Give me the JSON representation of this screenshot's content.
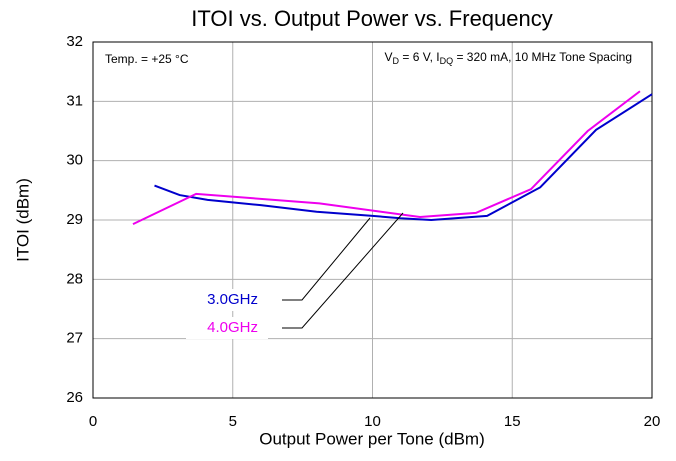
{
  "chart_data": {
    "type": "line",
    "title": "ITOI vs. Output Power vs. Frequency",
    "x_label": "Output Power per Tone (dBm)",
    "y_label": "ITOI (dBm)",
    "xlim": [
      0,
      20
    ],
    "ylim": [
      26,
      32
    ],
    "xticks": [
      0,
      5,
      10,
      15,
      20
    ],
    "yticks": [
      26,
      27,
      28,
      29,
      30,
      31,
      32
    ],
    "grid": true,
    "annotations": [
      {
        "parts": [
          {
            "text": "Temp. = +25 °C"
          }
        ]
      },
      {
        "parts": [
          {
            "text": "V"
          },
          {
            "text": "D",
            "sub": true
          },
          {
            "text": " = 6 V, I"
          },
          {
            "text": "DQ",
            "sub": true
          },
          {
            "text": " = 320 mA, 10 MHz Tone Spacing"
          }
        ]
      }
    ],
    "series": [
      {
        "name": "3.0GHz",
        "color": "#0000cc",
        "x": [
          2.2,
          3.1,
          4.1,
          6,
          8,
          10,
          11,
          12.1,
          14.1,
          16,
          18,
          20
        ],
        "values": [
          29.58,
          29.42,
          29.34,
          29.25,
          29.14,
          29.07,
          29.03,
          29.0,
          29.07,
          29.55,
          30.52,
          31.12
        ]
      },
      {
        "name": "4.0GHz",
        "color": "#ee00ee",
        "x": [
          1.43,
          3.69,
          8.1,
          11.7,
          13.7,
          15.67,
          17.7,
          19.57
        ],
        "values": [
          28.93,
          29.44,
          29.28,
          29.05,
          29.12,
          29.52,
          30.5,
          31.17
        ]
      }
    ]
  }
}
